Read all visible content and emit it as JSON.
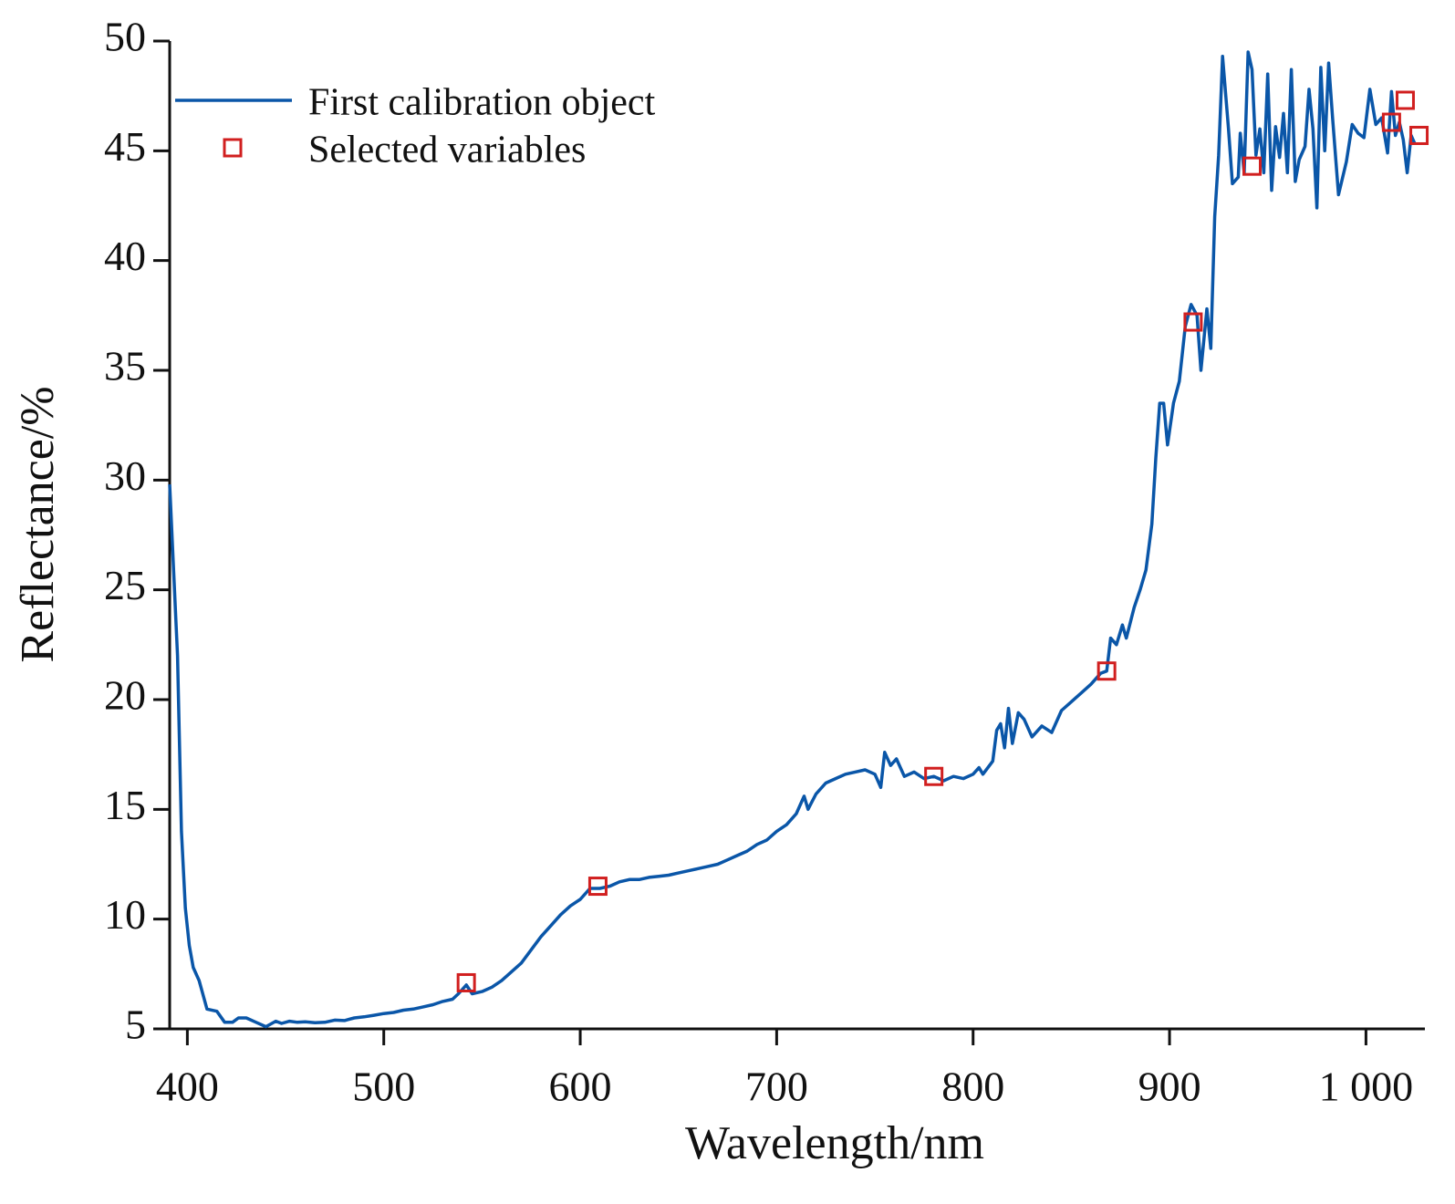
{
  "chart_data": {
    "type": "line",
    "xlabel": "Wavelength/nm",
    "ylabel": "Reflectance/%",
    "xlim": [
      391,
      1030
    ],
    "ylim": [
      5,
      50
    ],
    "xticks": [
      400,
      500,
      600,
      700,
      800,
      900,
      {
        "value": 1000,
        "label": "1 000"
      }
    ],
    "yticks": [
      5,
      10,
      15,
      20,
      25,
      30,
      35,
      40,
      45,
      50
    ],
    "legend": "upper left",
    "series": [
      {
        "name": "First calibration object",
        "color": "#0a56a8",
        "x": [
          391,
          395,
          397,
          399,
          401,
          403,
          406,
          410,
          415,
          419,
          423,
          426,
          430,
          435,
          440,
          445,
          448,
          452,
          456,
          460,
          465,
          470,
          475,
          480,
          485,
          490,
          495,
          500,
          505,
          510,
          515,
          520,
          525,
          530,
          535,
          538,
          542,
          545,
          550,
          555,
          560,
          565,
          570,
          575,
          580,
          585,
          590,
          595,
          600,
          605,
          610,
          615,
          620,
          625,
          630,
          635,
          640,
          645,
          650,
          655,
          660,
          665,
          670,
          675,
          680,
          685,
          690,
          695,
          700,
          705,
          710,
          714,
          716,
          720,
          725,
          730,
          735,
          740,
          745,
          750,
          753,
          755,
          758,
          761,
          765,
          770,
          775,
          780,
          785,
          790,
          795,
          800,
          803,
          805,
          810,
          812,
          814,
          816,
          818,
          820,
          823,
          826,
          830,
          835,
          840,
          845,
          850,
          855,
          860,
          865,
          868,
          870,
          873,
          876,
          878,
          882,
          885,
          888,
          891,
          893,
          895,
          897,
          899,
          902,
          905,
          908,
          911,
          914,
          916,
          919,
          921,
          923,
          925,
          927,
          930,
          932,
          935,
          936,
          938,
          940,
          942,
          944,
          946,
          948,
          950,
          952,
          954,
          956,
          958,
          960,
          962,
          964,
          966,
          969,
          971,
          973,
          975,
          977,
          979,
          981,
          983,
          986,
          990,
          993,
          996,
          999,
          1002,
          1005,
          1008,
          1011,
          1013,
          1015,
          1017,
          1019,
          1021,
          1023,
          1025
        ],
        "values": [
          29.8,
          22,
          14,
          10.5,
          8.8,
          7.8,
          7.2,
          5.9,
          5.8,
          5.3,
          5.3,
          5.5,
          5.5,
          5.3,
          5.1,
          5.35,
          5.25,
          5.35,
          5.3,
          5.32,
          5.28,
          5.3,
          5.4,
          5.38,
          5.5,
          5.55,
          5.62,
          5.7,
          5.75,
          5.85,
          5.9,
          6.0,
          6.1,
          6.25,
          6.35,
          6.6,
          7.0,
          6.6,
          6.7,
          6.9,
          7.2,
          7.6,
          8.0,
          8.6,
          9.2,
          9.7,
          10.2,
          10.6,
          10.9,
          11.4,
          11.4,
          11.5,
          11.7,
          11.8,
          11.8,
          11.9,
          11.95,
          12.0,
          12.1,
          12.2,
          12.3,
          12.4,
          12.5,
          12.7,
          12.9,
          13.1,
          13.4,
          13.6,
          14.0,
          14.3,
          14.8,
          15.6,
          15.0,
          15.7,
          16.2,
          16.4,
          16.6,
          16.7,
          16.8,
          16.6,
          16.0,
          17.6,
          17.0,
          17.3,
          16.5,
          16.7,
          16.4,
          16.5,
          16.3,
          16.5,
          16.4,
          16.6,
          16.9,
          16.6,
          17.2,
          18.6,
          18.9,
          17.8,
          19.6,
          18.0,
          19.4,
          19.1,
          18.3,
          18.8,
          18.5,
          19.5,
          19.9,
          20.3,
          20.7,
          21.2,
          21.3,
          22.8,
          22.5,
          23.4,
          22.8,
          24.2,
          25.0,
          25.9,
          28.0,
          31.0,
          33.5,
          33.5,
          31.6,
          33.5,
          34.5,
          37.0,
          38.0,
          37.5,
          35.0,
          37.8,
          36.0,
          42.0,
          44.8,
          49.3,
          46.0,
          43.5,
          43.8,
          45.8,
          44.0,
          49.5,
          48.7,
          44.8,
          46.0,
          44.0,
          48.5,
          43.2,
          46.1,
          44.7,
          46.7,
          44.0,
          48.7,
          43.6,
          44.6,
          45.2,
          47.8,
          46.0,
          42.4,
          48.8,
          45.0,
          49.0,
          46.5,
          43.0,
          44.5,
          46.2,
          45.8,
          45.6,
          47.8,
          46.2,
          46.5,
          44.9,
          47.7,
          45.7,
          46.3,
          45.5,
          44.0,
          45.7,
          45.3
        ]
      },
      {
        "name": "Selected variables",
        "color": "#d11f1f",
        "marker": "square",
        "x": [
          542,
          609,
          780,
          868,
          912,
          942,
          1013,
          1020,
          1027
        ],
        "values": [
          7.1,
          11.5,
          16.5,
          21.3,
          37.2,
          44.3,
          46.3,
          47.3,
          45.7
        ]
      }
    ]
  }
}
